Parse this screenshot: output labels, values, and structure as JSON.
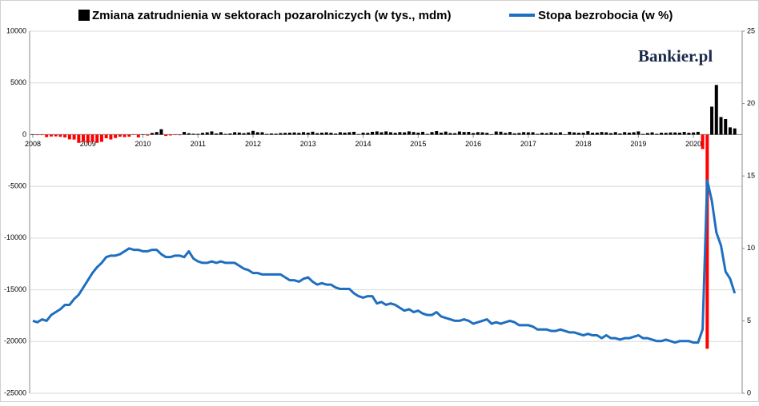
{
  "chart_data": {
    "type": "bar-line",
    "watermark": "Bankier.pl",
    "categories": [
      "2008",
      null,
      null,
      null,
      null,
      null,
      null,
      null,
      null,
      null,
      null,
      null,
      "2009",
      null,
      null,
      null,
      null,
      null,
      null,
      null,
      null,
      null,
      null,
      null,
      "2010",
      null,
      null,
      null,
      null,
      null,
      null,
      null,
      null,
      null,
      null,
      null,
      "2011",
      null,
      null,
      null,
      null,
      null,
      null,
      null,
      null,
      null,
      null,
      null,
      "2012",
      null,
      null,
      null,
      null,
      null,
      null,
      null,
      null,
      null,
      null,
      null,
      "2013",
      null,
      null,
      null,
      null,
      null,
      null,
      null,
      null,
      null,
      null,
      null,
      "2014",
      null,
      null,
      null,
      null,
      null,
      null,
      null,
      null,
      null,
      null,
      null,
      "2015",
      null,
      null,
      null,
      null,
      null,
      null,
      null,
      null,
      null,
      null,
      null,
      "2016",
      null,
      null,
      null,
      null,
      null,
      null,
      null,
      null,
      null,
      null,
      null,
      "2017",
      null,
      null,
      null,
      null,
      null,
      null,
      null,
      null,
      null,
      null,
      null,
      "2018",
      null,
      null,
      null,
      null,
      null,
      null,
      null,
      null,
      null,
      null,
      null,
      "2019",
      null,
      null,
      null,
      null,
      null,
      null,
      null,
      null,
      null,
      null,
      null,
      "2020",
      null,
      null,
      null,
      null,
      null,
      null,
      null,
      null,
      null
    ],
    "series": [
      {
        "name": "Zmiana zatrudnienia w sektorach pozarolniczych (w tys., mdm)",
        "kind": "bar",
        "color": "#000000",
        "negative_color": "#ff0000",
        "values": [
          10,
          -50,
          -50,
          -240,
          -180,
          -170,
          -210,
          -270,
          -460,
          -480,
          -800,
          -700,
          -790,
          -700,
          -800,
          -700,
          -350,
          -470,
          -330,
          -200,
          -240,
          -200,
          -10,
          -270,
          20,
          -90,
          160,
          250,
          520,
          -130,
          -80,
          -50,
          -60,
          260,
          130,
          80,
          70,
          170,
          220,
          310,
          110,
          230,
          70,
          110,
          230,
          200,
          140,
          210,
          360,
          230,
          230,
          70,
          110,
          90,
          150,
          170,
          190,
          210,
          170,
          240,
          190,
          280,
          140,
          190,
          220,
          180,
          100,
          230,
          190,
          230,
          270,
          50,
          190,
          170,
          270,
          310,
          230,
          310,
          230,
          170,
          240,
          220,
          310,
          250,
          190,
          270,
          70,
          250,
          340,
          190,
          290,
          150,
          140,
          300,
          250,
          260,
          150,
          240,
          220,
          170,
          40,
          300,
          280,
          160,
          250,
          120,
          160,
          240,
          220,
          230,
          70,
          180,
          140,
          220,
          140,
          220,
          20,
          270,
          210,
          180,
          180,
          330,
          180,
          190,
          250,
          220,
          140,
          240,
          110,
          240,
          190,
          230,
          310,
          60,
          150,
          220,
          80,
          180,
          170,
          210,
          210,
          190,
          260,
          180,
          210,
          270,
          -1400,
          -20700,
          2700,
          4800,
          1700,
          1500,
          700,
          600
        ]
      },
      {
        "name": "Stopa bezrobocia (w %)",
        "kind": "line",
        "axis": "y2",
        "color": "#1f6fc0",
        "values": [
          5.0,
          4.9,
          5.1,
          5.0,
          5.4,
          5.6,
          5.8,
          6.1,
          6.1,
          6.5,
          6.8,
          7.3,
          7.8,
          8.3,
          8.7,
          9.0,
          9.4,
          9.5,
          9.5,
          9.6,
          9.8,
          10.0,
          9.9,
          9.9,
          9.8,
          9.8,
          9.9,
          9.9,
          9.6,
          9.4,
          9.4,
          9.5,
          9.5,
          9.4,
          9.8,
          9.3,
          9.1,
          9.0,
          9.0,
          9.1,
          9.0,
          9.1,
          9.0,
          9.0,
          9.0,
          8.8,
          8.6,
          8.5,
          8.3,
          8.3,
          8.2,
          8.2,
          8.2,
          8.2,
          8.2,
          8.0,
          7.8,
          7.8,
          7.7,
          7.9,
          8.0,
          7.7,
          7.5,
          7.6,
          7.5,
          7.5,
          7.3,
          7.2,
          7.2,
          7.2,
          6.9,
          6.7,
          6.6,
          6.7,
          6.7,
          6.2,
          6.3,
          6.1,
          6.2,
          6.1,
          5.9,
          5.7,
          5.8,
          5.6,
          5.7,
          5.5,
          5.4,
          5.4,
          5.6,
          5.3,
          5.2,
          5.1,
          5.0,
          5.0,
          5.1,
          5.0,
          4.8,
          4.9,
          5.0,
          5.1,
          4.8,
          4.9,
          4.8,
          4.9,
          5.0,
          4.9,
          4.7,
          4.7,
          4.7,
          4.6,
          4.4,
          4.4,
          4.4,
          4.3,
          4.3,
          4.4,
          4.3,
          4.2,
          4.2,
          4.1,
          4.0,
          4.1,
          4.0,
          4.0,
          3.8,
          4.0,
          3.8,
          3.8,
          3.7,
          3.8,
          3.8,
          3.9,
          4.0,
          3.8,
          3.8,
          3.7,
          3.6,
          3.6,
          3.7,
          3.6,
          3.5,
          3.6,
          3.6,
          3.6,
          3.5,
          3.5,
          4.4,
          14.7,
          13.3,
          11.1,
          10.2,
          8.4,
          7.9,
          6.9
        ]
      }
    ],
    "ylim": [
      -25000,
      10000
    ],
    "yticks": [
      -25000,
      -20000,
      -15000,
      -10000,
      -5000,
      0,
      5000,
      10000
    ],
    "y2lim": [
      0,
      25
    ],
    "y2ticks": [
      0,
      5,
      10,
      15,
      20,
      25
    ],
    "grid": true
  }
}
